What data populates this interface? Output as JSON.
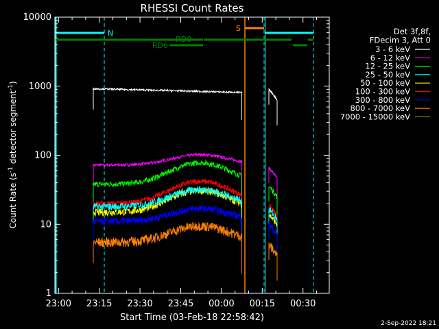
{
  "chart_data": {
    "type": "line",
    "title": "RHESSI Count Rates",
    "xlabel": "Start Time (03-Feb-18 22:58:42)",
    "ylabel_main": "Count Rate (s",
    "ylabel_sup": "-1",
    "ylabel_tail": " detector segment",
    "ylabel_sup2": "-1",
    "ylabel_end": ")",
    "y_scale": "log",
    "ylim": [
      1,
      10000
    ],
    "y_ticks": [
      {
        "v": 1,
        "label": "1"
      },
      {
        "v": 10,
        "label": "10"
      },
      {
        "v": 100,
        "label": "100"
      },
      {
        "v": 1000,
        "label": "1000"
      },
      {
        "v": 10000,
        "label": "10000"
      }
    ],
    "x_ticks": [
      "23:00",
      "23:15",
      "23:30",
      "23:45",
      "00:00",
      "00:15",
      "00:30"
    ],
    "legend_header": [
      "Det 3f,8f,",
      "FDecim 3, Att 0"
    ],
    "series": [
      {
        "name": "3 - 6 keV",
        "color": "#ffffff",
        "base": 920,
        "bump": 0,
        "noise": 0.03
      },
      {
        "name": "6 - 12 keV",
        "color": "#ff00ff",
        "base": 72,
        "bump": 30,
        "noise": 0.05
      },
      {
        "name": "12 - 25 keV",
        "color": "#00ff00",
        "base": 38,
        "bump": 40,
        "noise": 0.09
      },
      {
        "name": "25 - 50 keV",
        "color": "#00ffff",
        "base": 18,
        "bump": 14,
        "noise": 0.12
      },
      {
        "name": "50 - 100 keV",
        "color": "#ffff00",
        "base": 15,
        "bump": 16,
        "noise": 0.12
      },
      {
        "name": "100 - 300 keV",
        "color": "#ff0000",
        "base": 20,
        "bump": 22,
        "noise": 0.09
      },
      {
        "name": "300 - 800 keV",
        "color": "#0000ff",
        "base": 11,
        "bump": 6,
        "noise": 0.12
      },
      {
        "name": "800 - 7000 keV",
        "color": "#ff8000",
        "base": 5.5,
        "bump": 4,
        "noise": 0.16
      },
      {
        "name": "7000 - 15000 keV",
        "color": "#808000",
        "base": 0,
        "bump": 0,
        "noise": 0
      }
    ],
    "flags": {
      "N_label": "N",
      "S_label": "S",
      "RD0_label": "RD0",
      "RD6_label": "RD6"
    },
    "footer_date": "2-Sep-2022 18:21",
    "colors": {
      "background": "#000000",
      "axes": "#ffffff",
      "flag_n": "#00ffff",
      "flag_s": "#ff8000",
      "flag_rd": "#008000"
    }
  }
}
